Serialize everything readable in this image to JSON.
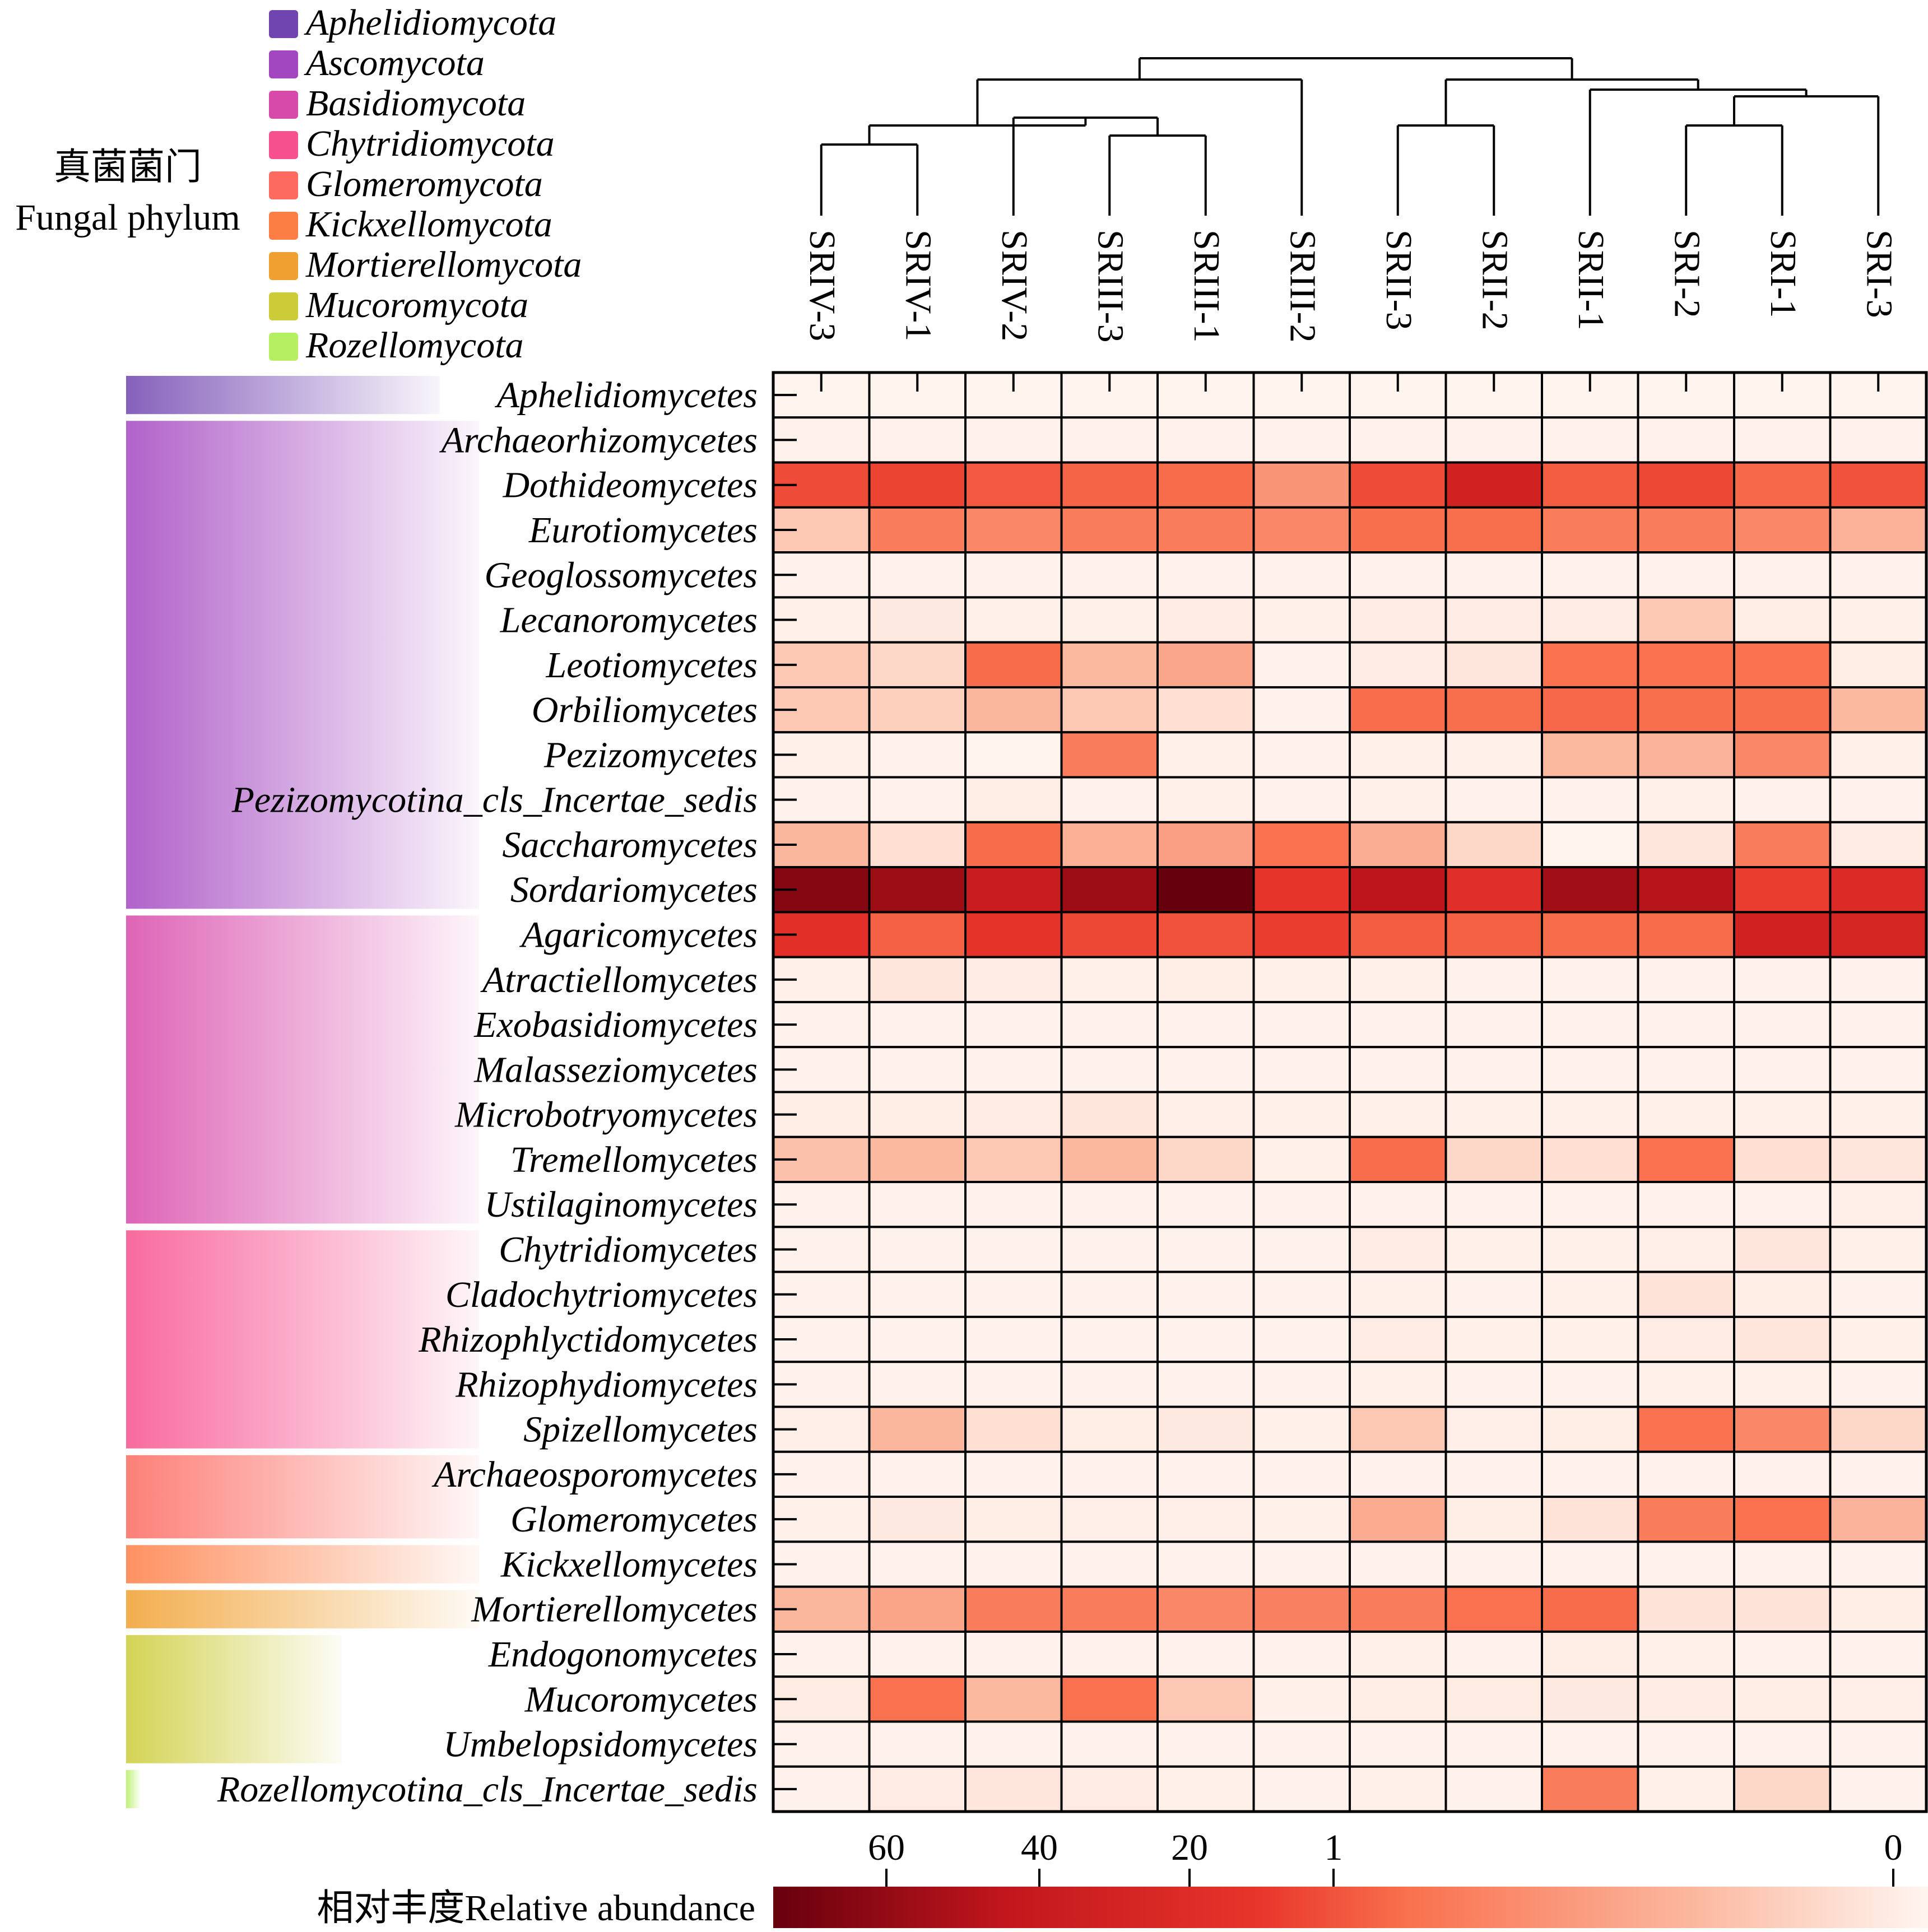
{
  "legend": {
    "title_cn": "真菌菌门",
    "title_en": "Fungal phylum",
    "items": [
      {
        "name": "Aphelidiomycota",
        "color": "#7145b0"
      },
      {
        "name": "Ascomycota",
        "color": "#a347c0"
      },
      {
        "name": "Basidiomycota",
        "color": "#d84aaa"
      },
      {
        "name": "Chytridiomycota",
        "color": "#f7508e"
      },
      {
        "name": "Glomeromycota",
        "color": "#fc6a60"
      },
      {
        "name": "Kickxellomycota",
        "color": "#fd7e45"
      },
      {
        "name": "Mortierellomycota",
        "color": "#f0a030"
      },
      {
        "name": "Mucoromycota",
        "color": "#cccc38"
      },
      {
        "name": "Rozellomycota",
        "color": "#b5f062"
      }
    ]
  },
  "colorbar": {
    "label": "相对丰度Relative abundance",
    "ticks": [
      {
        "label": "60",
        "value": 60
      },
      {
        "label": "40",
        "value": 40
      },
      {
        "label": "20",
        "value": 20
      },
      {
        "label": "1",
        "value": 1
      },
      {
        "label": "0",
        "value": 0
      }
    ],
    "colors": [
      "#67000d",
      "#c1161c",
      "#e8352b",
      "#f9714e",
      "#fbb9a0",
      "#fff5f0"
    ]
  },
  "chart_data": {
    "type": "heatmap",
    "value_scale": "relative abundance (%)",
    "columns": [
      "SRIV-3",
      "SRIV-1",
      "SRIV-2",
      "SRIII-3",
      "SRIII-1",
      "SRIII-2",
      "SRII-3",
      "SRII-2",
      "SRII-1",
      "SRI-2",
      "SRI-1",
      "SRI-3"
    ],
    "dendrogram_merges": [
      [
        "SRIV-3",
        "SRIV-1"
      ],
      [
        "SRIII-3",
        "SRIII-1"
      ],
      [
        "SRIV-2",
        "SRIII-3|SRIII-1"
      ],
      [
        "SRIV-3|SRIV-1",
        "SRIV-2|SRIII-3|SRIII-1"
      ],
      [
        "SRIV-3|SRIV-1|SRIV-2|SRIII-3|SRIII-1",
        "SRIII-2"
      ],
      [
        "SRII-3",
        "SRII-2"
      ],
      [
        "SRI-2",
        "SRI-1"
      ],
      [
        "SRI-2|SRI-1",
        "SRI-3"
      ],
      [
        "SRII-3|SRII-2",
        "SRII-1|SRI-2|SRI-1|SRI-3"
      ],
      [
        "SRIV|SRIII cluster",
        "SRII|SRI cluster"
      ]
    ],
    "row_groups": [
      {
        "phylum": "Aphelidiomycota",
        "rows": [
          "Aphelidiomycetes"
        ]
      },
      {
        "phylum": "Ascomycota",
        "rows": [
          "Archaeorhizomycetes",
          "Dothideomycetes",
          "Eurotiomycetes",
          "Geoglossomycetes",
          "Lecanoromycetes",
          "Leotiomycetes",
          "Orbiliomycetes",
          "Pezizomycetes",
          "Pezizomycotina_cls_Incertae_sedis",
          "Saccharomycetes",
          "Sordariomycetes"
        ]
      },
      {
        "phylum": "Basidiomycota",
        "rows": [
          "Agaricomycetes",
          "Atractiellomycetes",
          "Exobasidiomycetes",
          "Malasseziomycetes",
          "Microbotryomycetes",
          "Tremellomycetes",
          "Ustilaginomycetes"
        ]
      },
      {
        "phylum": "Chytridiomycota",
        "rows": [
          "Chytridiomycetes",
          "Cladochytriomycetes",
          "Rhizophlyctidomycetes",
          "Rhizophydiomycetes",
          "Spizellomycetes"
        ]
      },
      {
        "phylum": "Glomeromycota",
        "rows": [
          "Archaeosporomycetes",
          "Glomeromycetes"
        ]
      },
      {
        "phylum": "Kickxellomycota",
        "rows": [
          "Kickxellomycetes"
        ]
      },
      {
        "phylum": "Mortierellomycota",
        "rows": [
          "Mortierellomycetes"
        ]
      },
      {
        "phylum": "Mucoromycota",
        "rows": [
          "Endogonomycetes",
          "Mucoromycetes",
          "Umbelopsidomycetes"
        ]
      },
      {
        "phylum": "Rozellomycota",
        "rows": [
          "Rozellomycotina_cls_Incertae_sedis"
        ]
      }
    ],
    "rows": [
      {
        "name": "Aphelidiomycetes",
        "values": [
          0.01,
          0.01,
          0.01,
          0.01,
          0.01,
          0.01,
          0.01,
          0.01,
          0.01,
          0.01,
          0.01,
          0.01
        ]
      },
      {
        "name": "Archaeorhizomycetes",
        "values": [
          0.02,
          0.02,
          0.02,
          0.02,
          0.02,
          0.02,
          0.02,
          0.02,
          0.02,
          0.02,
          0.02,
          0.02
        ]
      },
      {
        "name": "Dothideomycetes",
        "values": [
          14,
          16,
          10,
          7,
          5,
          2,
          14,
          35,
          9,
          15,
          6,
          12
        ]
      },
      {
        "name": "Eurotiomycetes",
        "values": [
          0.3,
          3,
          2.5,
          3,
          3,
          2.5,
          4,
          4,
          3,
          3,
          2.5,
          0.7
        ]
      },
      {
        "name": "Geoglossomycetes",
        "values": [
          0.02,
          0.02,
          0.02,
          0.02,
          0.02,
          0.02,
          0.02,
          0.02,
          0.02,
          0.02,
          0.02,
          0.02
        ]
      },
      {
        "name": "Lecanoromycetes",
        "values": [
          0.03,
          0.08,
          0.03,
          0.03,
          0.06,
          0.03,
          0.06,
          0.06,
          0.06,
          0.3,
          0.05,
          0.03
        ]
      },
      {
        "name": "Leotiomycetes",
        "values": [
          0.3,
          0.2,
          5,
          0.4,
          1.2,
          0.02,
          0.06,
          0.1,
          3.5,
          3.5,
          3.5,
          0.05
        ]
      },
      {
        "name": "Orbiliomycetes",
        "values": [
          0.3,
          0.25,
          0.5,
          0.3,
          0.15,
          0.02,
          4.5,
          4,
          6,
          4,
          4,
          0.4
        ]
      },
      {
        "name": "Pezizomycetes",
        "values": [
          0.03,
          0.02,
          0.01,
          3,
          0.03,
          0.02,
          0.03,
          0.03,
          0.4,
          0.6,
          2.5,
          0.03
        ]
      },
      {
        "name": "Pezizomycotina_cls_Incertae_sedis",
        "values": [
          0.02,
          0.02,
          0.05,
          0.02,
          0.03,
          0.02,
          0.03,
          0.02,
          0.02,
          0.03,
          0.02,
          0.02
        ]
      },
      {
        "name": "Saccharomycetes",
        "values": [
          0.5,
          0.15,
          5,
          0.8,
          1.5,
          3.5,
          0.9,
          0.2,
          0.01,
          0.1,
          3,
          0.07
        ]
      },
      {
        "name": "Sordariomycetes",
        "values": [
          62,
          55,
          40,
          55,
          70,
          21,
          46,
          25,
          54,
          48,
          18,
          28
        ]
      },
      {
        "name": "Agaricomycetes",
        "values": [
          24,
          8,
          22,
          15,
          12,
          18,
          9,
          8,
          5,
          5,
          35,
          32
        ]
      },
      {
        "name": "Atractiellomycetes",
        "values": [
          0.03,
          0.1,
          0.06,
          0.03,
          0.05,
          0.03,
          0.03,
          0.02,
          0.02,
          0.02,
          0.02,
          0.02
        ]
      },
      {
        "name": "Exobasidiomycetes",
        "values": [
          0.02,
          0.02,
          0.02,
          0.02,
          0.02,
          0.02,
          0.02,
          0.02,
          0.02,
          0.02,
          0.02,
          0.02
        ]
      },
      {
        "name": "Malasseziomycetes",
        "values": [
          0.02,
          0.02,
          0.02,
          0.02,
          0.02,
          0.02,
          0.02,
          0.02,
          0.02,
          0.02,
          0.02,
          0.02
        ]
      },
      {
        "name": "Microbotryomycetes",
        "values": [
          0.05,
          0.05,
          0.06,
          0.1,
          0.04,
          0.03,
          0.03,
          0.03,
          0.03,
          0.03,
          0.03,
          0.03
        ]
      },
      {
        "name": "Tremellomycetes",
        "values": [
          0.35,
          0.4,
          0.3,
          0.45,
          0.2,
          0.03,
          4.5,
          0.2,
          0.15,
          3.5,
          0.15,
          0.1
        ]
      },
      {
        "name": "Ustilaginomycetes",
        "values": [
          0.02,
          0.02,
          0.02,
          0.02,
          0.02,
          0.02,
          0.02,
          0.02,
          0.02,
          0.02,
          0.02,
          0.04
        ]
      },
      {
        "name": "Chytridiomycetes",
        "values": [
          0.02,
          0.02,
          0.02,
          0.02,
          0.02,
          0.02,
          0.06,
          0.03,
          0.03,
          0.04,
          0.1,
          0.03
        ]
      },
      {
        "name": "Cladochytriomycetes",
        "values": [
          0.02,
          0.02,
          0.02,
          0.02,
          0.02,
          0.02,
          0.03,
          0.02,
          0.03,
          0.12,
          0.05,
          0.02
        ]
      },
      {
        "name": "Rhizophlyctidomycetes",
        "values": [
          0.02,
          0.02,
          0.02,
          0.02,
          0.02,
          0.02,
          0.06,
          0.03,
          0.03,
          0.06,
          0.1,
          0.03
        ]
      },
      {
        "name": "Rhizophydiomycetes",
        "values": [
          0.02,
          0.02,
          0.02,
          0.02,
          0.02,
          0.02,
          0.03,
          0.02,
          0.02,
          0.03,
          0.03,
          0.02
        ]
      },
      {
        "name": "Spizellomycetes",
        "values": [
          0.04,
          0.5,
          0.15,
          0.05,
          0.08,
          0.03,
          0.3,
          0.04,
          0.05,
          3.5,
          2.5,
          0.2
        ]
      },
      {
        "name": "Archaeosporomycetes",
        "values": [
          0.02,
          0.02,
          0.02,
          0.02,
          0.02,
          0.02,
          0.02,
          0.02,
          0.02,
          0.02,
          0.02,
          0.02
        ]
      },
      {
        "name": "Glomeromycetes",
        "values": [
          0.03,
          0.08,
          0.05,
          0.04,
          0.04,
          0.03,
          1,
          0.05,
          0.12,
          3,
          3.5,
          0.6
        ]
      },
      {
        "name": "Kickxellomycetes",
        "values": [
          0.02,
          0.02,
          0.02,
          0.02,
          0.02,
          0.02,
          0.02,
          0.02,
          0.02,
          0.02,
          0.02,
          0.02
        ]
      },
      {
        "name": "Mortierellomycetes",
        "values": [
          0.5,
          1.3,
          3,
          3,
          2.5,
          2.8,
          3,
          3.5,
          5,
          0.12,
          0.12,
          0.05
        ]
      },
      {
        "name": "Endogonomycetes",
        "values": [
          0.02,
          0.02,
          0.02,
          0.02,
          0.02,
          0.02,
          0.03,
          0.02,
          0.05,
          0.03,
          0.02,
          0.02
        ]
      },
      {
        "name": "Mucoromycetes",
        "values": [
          0.07,
          3.5,
          0.4,
          3.5,
          0.3,
          0.03,
          0.05,
          0.07,
          0.08,
          0.06,
          0.05,
          0.04
        ]
      },
      {
        "name": "Umbelopsidomycetes",
        "values": [
          0.02,
          0.02,
          0.02,
          0.02,
          0.02,
          0.02,
          0.02,
          0.02,
          0.02,
          0.02,
          0.02,
          0.02
        ]
      },
      {
        "name": "Rozellomycotina_cls_Incertae_sedis",
        "values": [
          0.02,
          0.06,
          0.1,
          0.06,
          0.03,
          0.02,
          0.03,
          0.02,
          3,
          0.03,
          0.2,
          0.02
        ]
      }
    ]
  }
}
